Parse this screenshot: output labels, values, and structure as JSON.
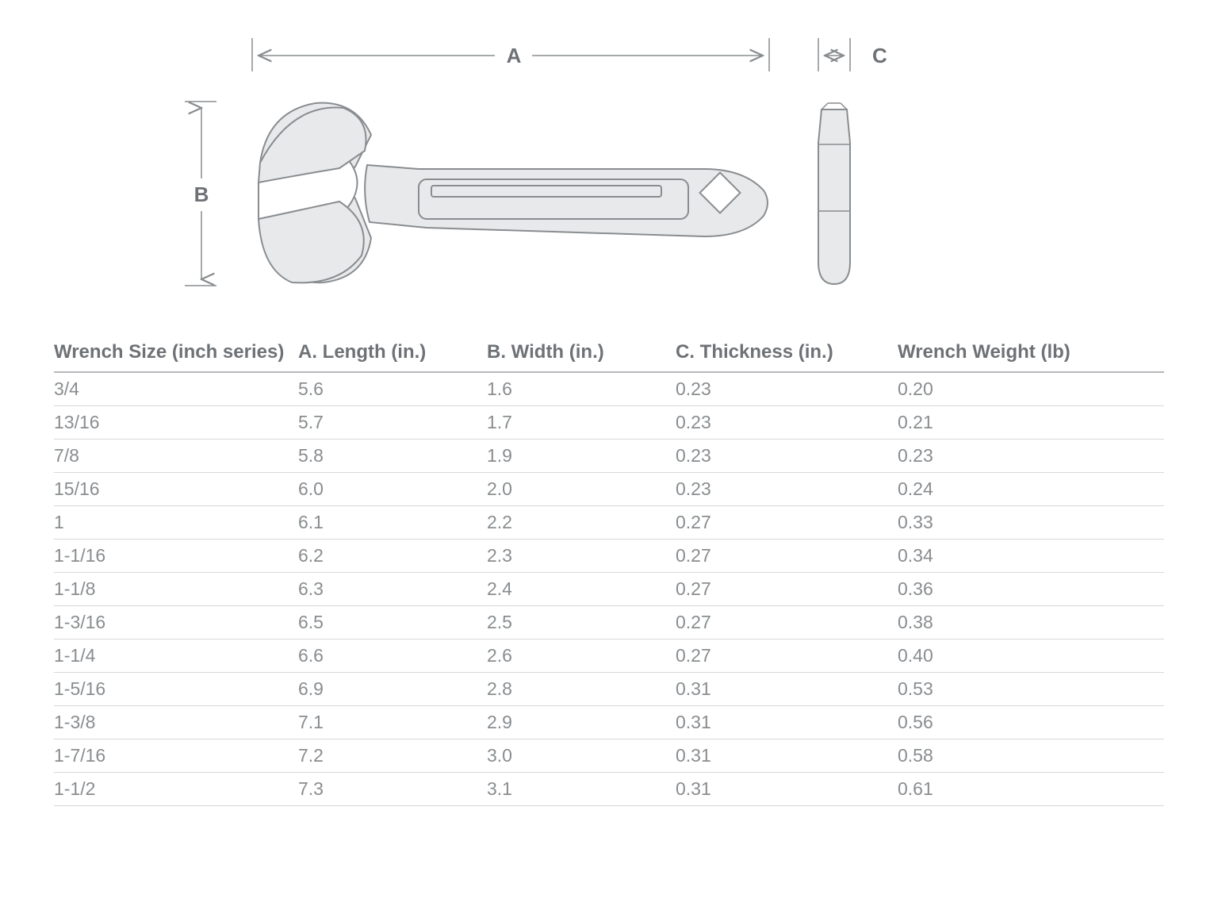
{
  "diagram": {
    "labels": {
      "A": "A",
      "B": "B",
      "C": "C"
    },
    "colors": {
      "stroke": "#898d90",
      "fill": "#e8e9ea",
      "whiteFill": "#ffffff",
      "labelText": "#6e7276"
    },
    "font": {
      "labelSize": 26,
      "labelWeight": 700
    }
  },
  "table": {
    "columns": [
      "Wrench Size (inch series)",
      "A. Length (in.)",
      "B. Width (in.)",
      "C. Thickness (in.)",
      "Wrench Weight (lb)"
    ],
    "rows": [
      [
        "3/4",
        "5.6",
        "1.6",
        "0.23",
        "0.20"
      ],
      [
        "13/16",
        "5.7",
        "1.7",
        "0.23",
        "0.21"
      ],
      [
        "7/8",
        "5.8",
        "1.9",
        "0.23",
        "0.23"
      ],
      [
        "15/16",
        "6.0",
        "2.0",
        "0.23",
        "0.24"
      ],
      [
        "1",
        "6.1",
        "2.2",
        "0.27",
        "0.33"
      ],
      [
        "1-1/16",
        "6.2",
        "2.3",
        "0.27",
        "0.34"
      ],
      [
        "1-1/8",
        "6.3",
        "2.4",
        "0.27",
        "0.36"
      ],
      [
        "1-3/16",
        "6.5",
        "2.5",
        "0.27",
        "0.38"
      ],
      [
        "1-1/4",
        "6.6",
        "2.6",
        "0.27",
        "0.40"
      ],
      [
        "1-5/16",
        "6.9",
        "2.8",
        "0.31",
        "0.53"
      ],
      [
        "1-3/8",
        "7.1",
        "2.9",
        "0.31",
        "0.56"
      ],
      [
        "1-7/16",
        "7.2",
        "3.0",
        "0.31",
        "0.58"
      ],
      [
        "1-1/2",
        "7.3",
        "3.1",
        "0.31",
        "0.61"
      ]
    ],
    "headerColor": "#6e7276",
    "cellColor": "#898d90",
    "headerRuleColor": "#b5b8bb",
    "rowRuleColor": "#d6d8da",
    "headerFontSize": 24,
    "cellFontSize": 23
  }
}
